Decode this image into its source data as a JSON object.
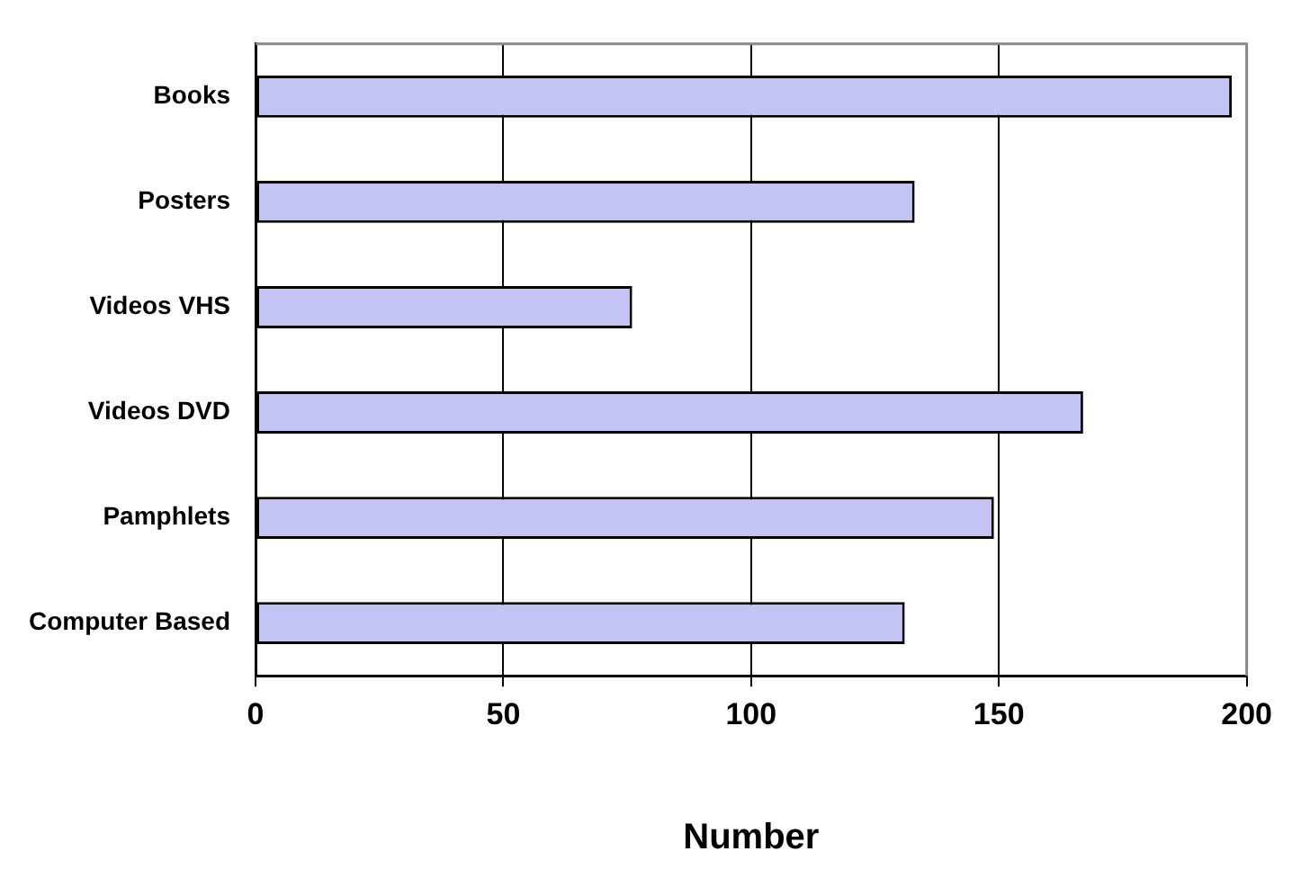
{
  "chart_data": {
    "type": "bar",
    "orientation": "horizontal",
    "xlabel": "Number",
    "categories": [
      "Books",
      "Posters",
      "Videos VHS",
      "Videos DVD",
      "Pamphlets",
      "Computer Based"
    ],
    "values": [
      197,
      133,
      76,
      167,
      149,
      131
    ],
    "color": "#c4c4f4",
    "xlim": [
      0,
      200
    ],
    "xticks": [
      0,
      50,
      100,
      150,
      200
    ],
    "grid": "x",
    "legend": false
  }
}
